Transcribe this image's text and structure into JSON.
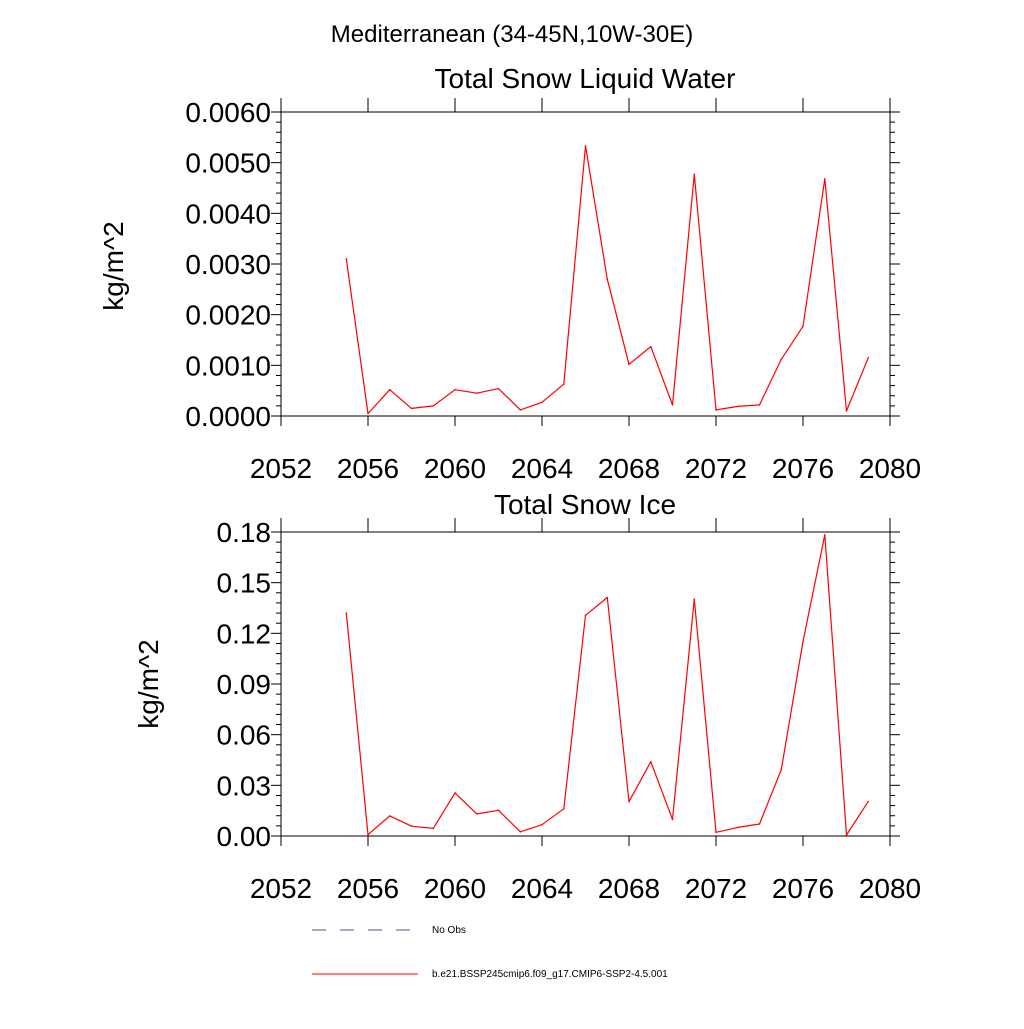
{
  "figure_title": "Mediterranean (34-45N,10W-30E)",
  "chart_data": [
    {
      "type": "line",
      "title": "Total Snow Liquid Water",
      "xlabel": "",
      "ylabel": "kg/m^2",
      "xlim": [
        2052,
        2080
      ],
      "ylim": [
        0,
        0.006
      ],
      "x_ticks": [
        "2052",
        "2056",
        "2060",
        "2064",
        "2068",
        "2072",
        "2076",
        "2080"
      ],
      "y_ticks": [
        "0.0000",
        "0.0010",
        "0.0020",
        "0.0030",
        "0.0040",
        "0.0050",
        "0.0060"
      ],
      "x": [
        2055,
        2056,
        2057,
        2058,
        2059,
        2060,
        2061,
        2062,
        2063,
        2064,
        2065,
        2066,
        2067,
        2068,
        2069,
        2070,
        2071,
        2072,
        2073,
        2074,
        2075,
        2076,
        2077,
        2078,
        2079
      ],
      "series": [
        {
          "name": "b.e21.BSSP245cmip6.f09_g17.CMIP6-SSP2-4.5.001",
          "color": "#ff0000",
          "values": [
            0.0031,
            5e-05,
            0.00052,
            0.00015,
            0.0002,
            0.00052,
            0.00045,
            0.00054,
            0.00012,
            0.00027,
            0.00063,
            0.00533,
            0.0027,
            0.00102,
            0.00137,
            0.00022,
            0.00477,
            0.00012,
            0.00019,
            0.00022,
            0.00112,
            0.00177,
            0.00468,
            0.0001,
            0.00115
          ]
        }
      ]
    },
    {
      "type": "line",
      "title": "Total Snow Ice",
      "xlabel": "",
      "ylabel": "kg/m^2",
      "xlim": [
        2052,
        2080
      ],
      "ylim": [
        0,
        0.18
      ],
      "x_ticks": [
        "2052",
        "2056",
        "2060",
        "2064",
        "2068",
        "2072",
        "2076",
        "2080"
      ],
      "y_ticks": [
        "0.00",
        "0.03",
        "0.06",
        "0.09",
        "0.12",
        "0.15",
        "0.18"
      ],
      "x": [
        2055,
        2056,
        2057,
        2058,
        2059,
        2060,
        2061,
        2062,
        2063,
        2064,
        2065,
        2066,
        2067,
        2068,
        2069,
        2070,
        2071,
        2072,
        2073,
        2074,
        2075,
        2076,
        2077,
        2078,
        2079
      ],
      "series": [
        {
          "name": "b.e21.BSSP245cmip6.f09_g17.CMIP6-SSP2-4.5.001",
          "color": "#ff0000",
          "values": [
            0.132,
            0.0008,
            0.0119,
            0.0058,
            0.0045,
            0.0255,
            0.0131,
            0.0152,
            0.0025,
            0.0067,
            0.0161,
            0.1307,
            0.1412,
            0.0203,
            0.044,
            0.0098,
            0.1402,
            0.0022,
            0.0051,
            0.0071,
            0.0393,
            0.1152,
            0.1783,
            0.0006,
            0.0205
          ]
        }
      ]
    }
  ],
  "legend": {
    "placement": "bottom",
    "items": [
      {
        "label": "No Obs",
        "color": "#4a5a8a",
        "style": "dashed"
      },
      {
        "label": "b.e21.BSSP245cmip6.f09_g17.CMIP6-SSP2-4.5.001",
        "color": "#ff0000",
        "style": "solid"
      }
    ]
  }
}
